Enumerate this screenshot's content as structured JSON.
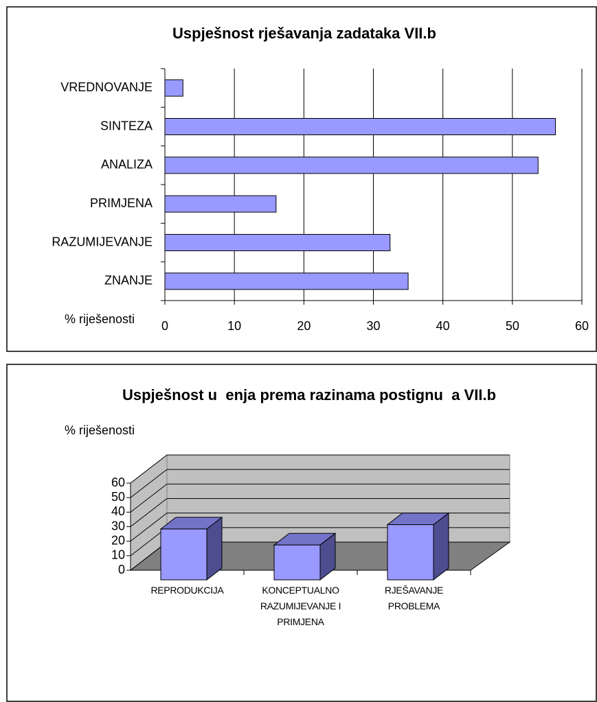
{
  "chart_data": [
    {
      "type": "hbar",
      "title": "Uspješnost rješavanja zadataka VII.b",
      "xlabel": "% riješenosti",
      "categories": [
        "VREDNOVANJE",
        "SINTEZA",
        "ANALIZA",
        "PRIMJENA",
        "RAZUMIJEVANJE",
        "ZNANJE"
      ],
      "values": [
        2.6,
        56.2,
        53.7,
        16,
        32.4,
        35
      ],
      "color": "#9999ff",
      "xlim": [
        0,
        60
      ],
      "xticks": [
        0,
        10,
        20,
        30,
        40,
        50,
        60
      ],
      "grid": true
    },
    {
      "type": "bar3d",
      "title": "Uspješnost u  enja prema razinama postignu  a VII.b",
      "ylabel": "% riješenosti",
      "categories": [
        "REPRODUKCIJA",
        "KONCEPTUALNO RAZUMIJEVANJE I PRIMJENA",
        "RJEŠAVANJE PROBLEMA"
      ],
      "values": [
        35,
        24,
        38
      ],
      "color": "#9999ff",
      "ylim": [
        0,
        60
      ],
      "yticks": [
        0,
        10,
        20,
        30,
        40,
        50,
        60
      ],
      "grid": true
    }
  ]
}
